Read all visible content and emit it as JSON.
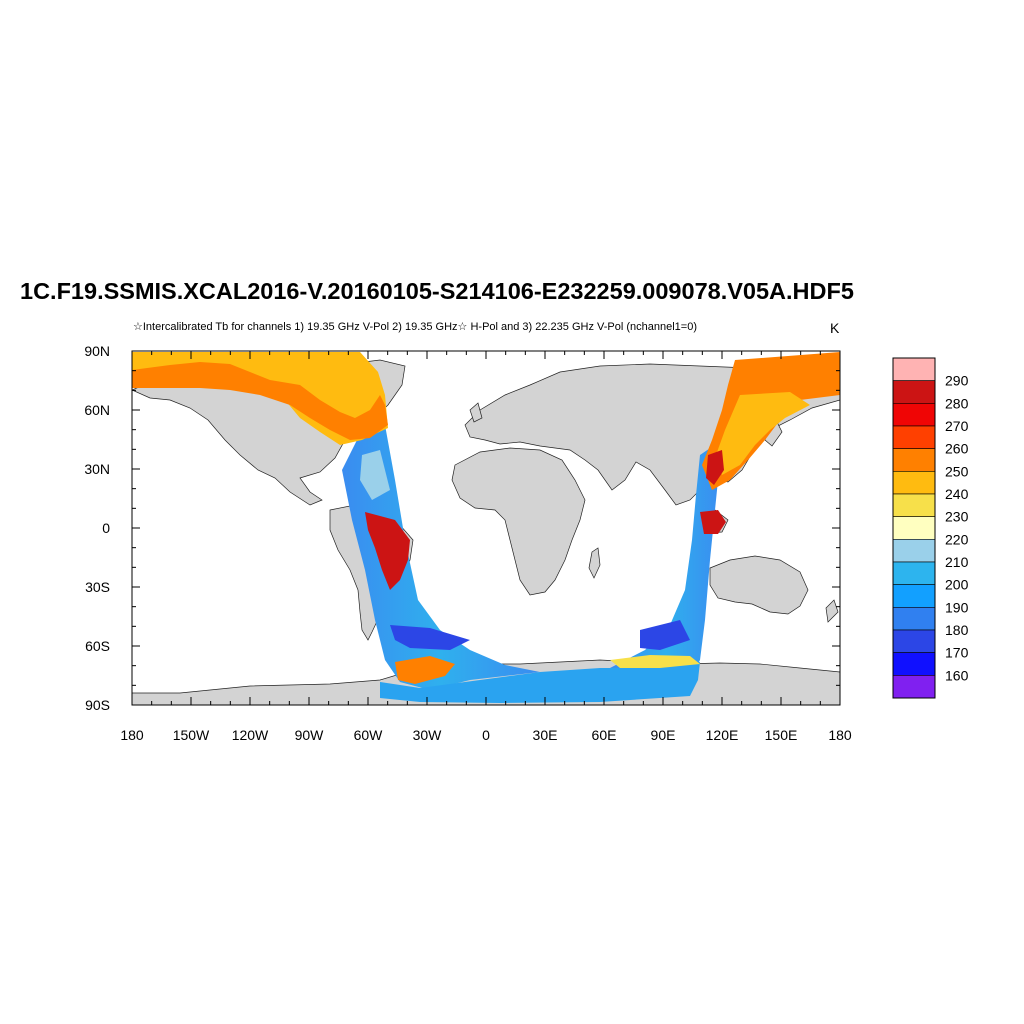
{
  "title": "1C.F19.SSMIS.XCAL2016-V.20160105-S214106-E232259.009078.V05A.HDF5",
  "subtitle": "☆Intercalibrated Tb for channels 1) 19.35 GHz V-Pol 2) 19.35 GHz☆ H-Pol and 3) 22.235 GHz V-Pol (nchannel1=0)",
  "units": "K",
  "map": {
    "projection": "cylindrical-equidistant",
    "lon_range": [
      -180,
      180
    ],
    "lat_range": [
      -90,
      90
    ],
    "land_color": "#d3d3d3",
    "ocean_color": "#ffffff",
    "lat_ticks": [
      {
        "value": 90,
        "label": "90N"
      },
      {
        "value": 60,
        "label": "60N"
      },
      {
        "value": 30,
        "label": "30N"
      },
      {
        "value": 0,
        "label": "0"
      },
      {
        "value": -30,
        "label": "30S"
      },
      {
        "value": -60,
        "label": "60S"
      },
      {
        "value": -90,
        "label": "90S"
      }
    ],
    "lon_ticks": [
      {
        "value": -180,
        "label": "180"
      },
      {
        "value": -150,
        "label": "150W"
      },
      {
        "value": -120,
        "label": "120W"
      },
      {
        "value": -90,
        "label": "90W"
      },
      {
        "value": -60,
        "label": "60W"
      },
      {
        "value": -30,
        "label": "30W"
      },
      {
        "value": 0,
        "label": "0"
      },
      {
        "value": 30,
        "label": "30E"
      },
      {
        "value": 60,
        "label": "60E"
      },
      {
        "value": 90,
        "label": "90E"
      },
      {
        "value": 120,
        "label": "120E"
      },
      {
        "value": 150,
        "label": "150E"
      },
      {
        "value": 180,
        "label": "180"
      }
    ]
  },
  "colorbar": {
    "labels": [
      "290",
      "280",
      "270",
      "260",
      "250",
      "240",
      "230",
      "220",
      "210",
      "200",
      "190",
      "180",
      "170",
      "160"
    ],
    "colors": [
      "#ffb3b3",
      "#cc1414",
      "#f00505",
      "#ff4000",
      "#ff8000",
      "#ffbb10",
      "#f7e04a",
      "#ffffc0",
      "#9ad0ea",
      "#2db4ee",
      "#12a0ff",
      "#3080f0",
      "#2c46e6",
      "#1010ff",
      "#8020f0"
    ]
  }
}
